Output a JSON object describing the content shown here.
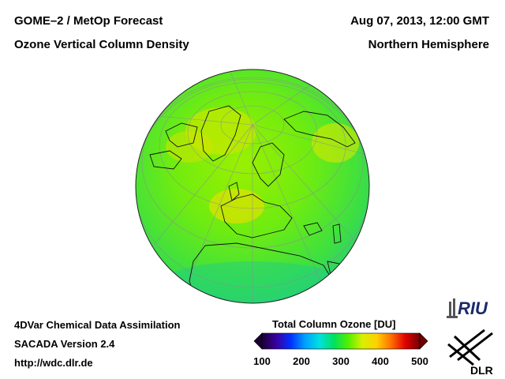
{
  "header": {
    "title_line1": "GOME–2 / MetOp Forecast",
    "title_line2": "Ozone Vertical Column Density",
    "date": "Aug 07, 2013, 12:00 GMT",
    "region": "Northern Hemisphere"
  },
  "footer": {
    "line1": "4DVar Chemical Data Assimilation",
    "line2": "SACADA Version 2.4",
    "url": "http://wdc.dlr.de"
  },
  "colorbar": {
    "title": "Total Column Ozone [DU]",
    "ticks": [
      "100",
      "200",
      "300",
      "400",
      "500"
    ],
    "colors": [
      "#1a0033",
      "#3a00a0",
      "#0030ff",
      "#00a0ff",
      "#00e0e0",
      "#00e060",
      "#50f000",
      "#d8f000",
      "#ffd000",
      "#ff7000",
      "#e00000",
      "#700000"
    ]
  },
  "logos": {
    "riu": "RIU",
    "dlr": "DLR"
  },
  "map": {
    "projection": "orthographic",
    "hemisphere": "Northern Hemisphere"
  }
}
